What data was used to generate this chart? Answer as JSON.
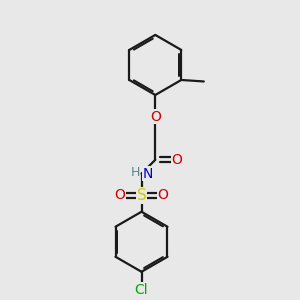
{
  "background_color": "#e8e8e8",
  "bond_color": "#1a1a1a",
  "atom_colors": {
    "O": "#cc0000",
    "N": "#0000cc",
    "S": "#cccc00",
    "Cl": "#00aa00",
    "C": "#1a1a1a",
    "H": "#558888"
  },
  "bond_lw": 1.6,
  "sep": 0.07,
  "shrink": 0.13
}
